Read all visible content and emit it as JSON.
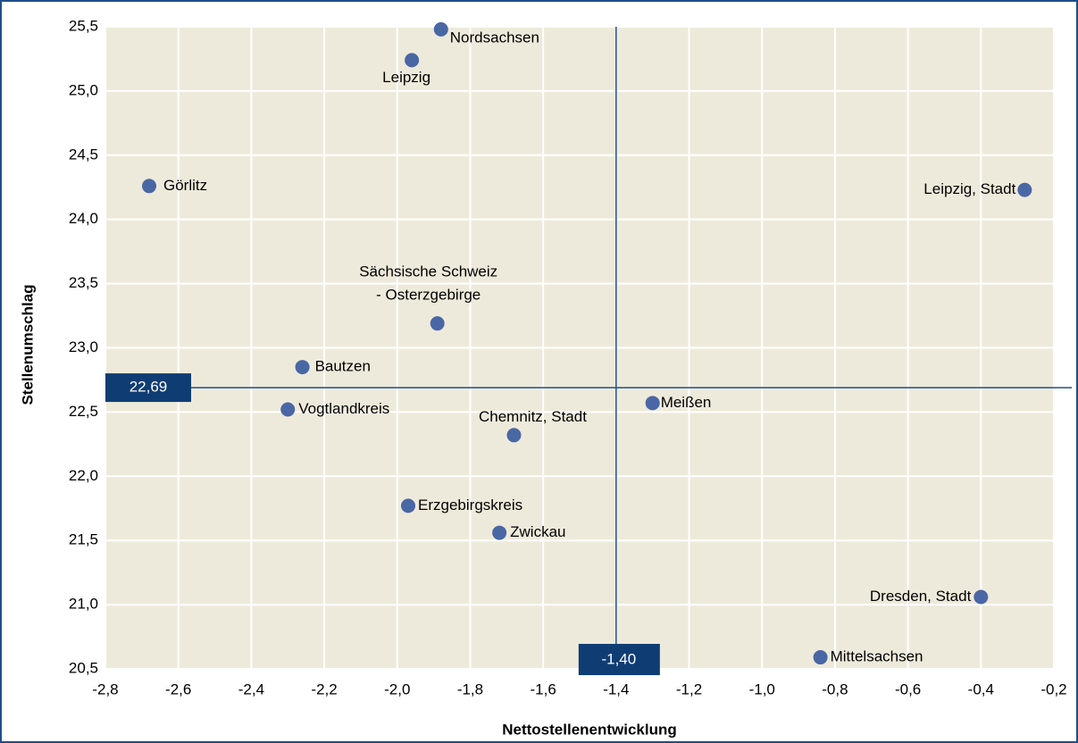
{
  "chart_data": {
    "type": "scatter",
    "x_label": "Nettostellenentwicklung",
    "y_label": "Stellenumschlag",
    "labels": [
      "Nordsachsen",
      "Leipzig",
      "Görlitz",
      "Leipzig, Stadt",
      [
        "Sächsische Schweiz",
        "- Osterzgebirge"
      ],
      "Bautzen",
      "Vogtlandkreis",
      "Meißen",
      "Chemnitz, Stadt",
      "Erzgebirgskreis",
      "Zwickau",
      "Dresden, Stadt",
      "Mittelsachsen"
    ],
    "x": [
      -1.88,
      -1.96,
      -2.68,
      -0.28,
      -1.89,
      -2.26,
      -2.3,
      -1.3,
      -1.68,
      -1.97,
      -1.72,
      -0.4,
      -0.84
    ],
    "y": [
      25.48,
      25.24,
      24.26,
      24.23,
      23.19,
      22.85,
      22.52,
      22.57,
      22.32,
      21.77,
      21.56,
      21.06,
      20.59
    ],
    "color": "#4a67a5",
    "reference_lines": {
      "x": {
        "value": -1.4,
        "label": "-1,40"
      },
      "y": {
        "value": 22.69,
        "label": "22,69"
      }
    },
    "xlim": [
      -2.8,
      -0.2
    ],
    "ylim": [
      20.5,
      25.5
    ],
    "xticks": [
      {
        "value": -2.8,
        "label": "-2,8"
      },
      {
        "value": -2.6,
        "label": "-2,6"
      },
      {
        "value": -2.4,
        "label": "-2,4"
      },
      {
        "value": -2.2,
        "label": "-2,2"
      },
      {
        "value": -2.0,
        "label": "-2,0"
      },
      {
        "value": -1.8,
        "label": "-1,8"
      },
      {
        "value": -1.6,
        "label": "-1,6"
      },
      {
        "value": -1.4,
        "label": "-1,4"
      },
      {
        "value": -1.2,
        "label": "-1,2"
      },
      {
        "value": -1.0,
        "label": "-1,0"
      },
      {
        "value": -0.8,
        "label": "-0,8"
      },
      {
        "value": -0.6,
        "label": "-0,6"
      },
      {
        "value": -0.4,
        "label": "-0,4"
      },
      {
        "value": -0.2,
        "label": "-0,2"
      }
    ],
    "yticks": [
      {
        "value": 20.5,
        "label": "20,5"
      },
      {
        "value": 21.0,
        "label": "21,0"
      },
      {
        "value": 21.5,
        "label": "21,5"
      },
      {
        "value": 22.0,
        "label": "22,0"
      },
      {
        "value": 22.5,
        "label": "22,5"
      },
      {
        "value": 23.0,
        "label": "23,0"
      },
      {
        "value": 23.5,
        "label": "23,5"
      },
      {
        "value": 24.0,
        "label": "24,0"
      },
      {
        "value": 24.5,
        "label": "24,5"
      },
      {
        "value": 25.0,
        "label": "25,0"
      },
      {
        "value": 25.5,
        "label": "25,5"
      }
    ],
    "grid": true
  }
}
